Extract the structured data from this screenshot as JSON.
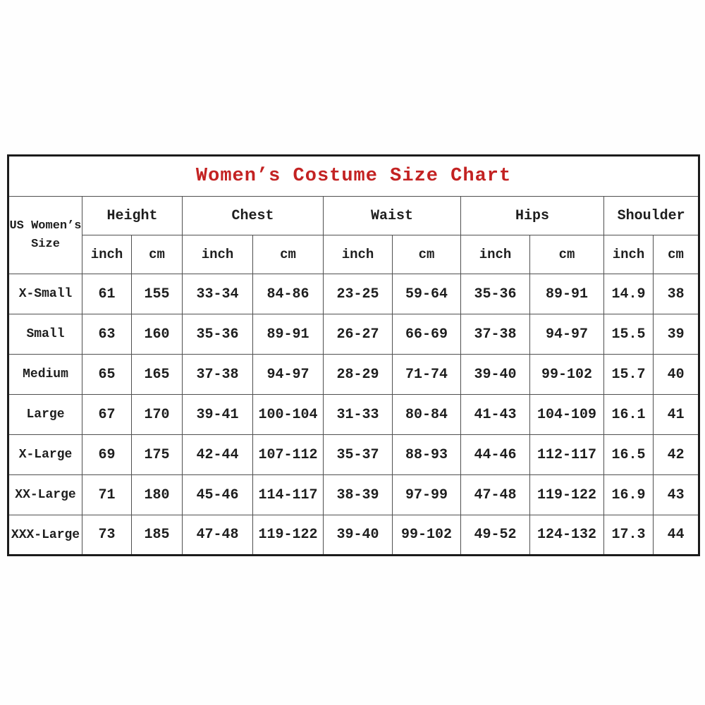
{
  "page": {
    "background": "#ffffff"
  },
  "colors": {
    "title_text": "#c32222",
    "body_text": "#1e1e1e",
    "outer_border": "#1b1b1b",
    "inner_border": "#4f4f4f"
  },
  "chart_data": {
    "type": "table",
    "title": "Women’s Costume Size Chart",
    "corner_header": "US Women’s Size",
    "groups": [
      "Height",
      "Chest",
      "Waist",
      "Hips",
      "Shoulder"
    ],
    "units": [
      "inch",
      "cm"
    ],
    "rows": [
      {
        "label": "X-Small",
        "values": [
          "61",
          "155",
          "33-34",
          "84-86",
          "23-25",
          "59-64",
          "35-36",
          "89-91",
          "14.9",
          "38"
        ]
      },
      {
        "label": "Small",
        "values": [
          "63",
          "160",
          "35-36",
          "89-91",
          "26-27",
          "66-69",
          "37-38",
          "94-97",
          "15.5",
          "39"
        ]
      },
      {
        "label": "Medium",
        "values": [
          "65",
          "165",
          "37-38",
          "94-97",
          "28-29",
          "71-74",
          "39-40",
          "99-102",
          "15.7",
          "40"
        ]
      },
      {
        "label": "Large",
        "values": [
          "67",
          "170",
          "39-41",
          "100-104",
          "31-33",
          "80-84",
          "41-43",
          "104-109",
          "16.1",
          "41"
        ]
      },
      {
        "label": "X-Large",
        "values": [
          "69",
          "175",
          "42-44",
          "107-112",
          "35-37",
          "88-93",
          "44-46",
          "112-117",
          "16.5",
          "42"
        ]
      },
      {
        "label": "XX-Large",
        "values": [
          "71",
          "180",
          "45-46",
          "114-117",
          "38-39",
          "97-99",
          "47-48",
          "119-122",
          "16.9",
          "43"
        ]
      },
      {
        "label": "XXX-Large",
        "values": [
          "73",
          "185",
          "47-48",
          "119-122",
          "39-40",
          "99-102",
          "49-52",
          "124-132",
          "17.3",
          "44"
        ]
      }
    ]
  }
}
